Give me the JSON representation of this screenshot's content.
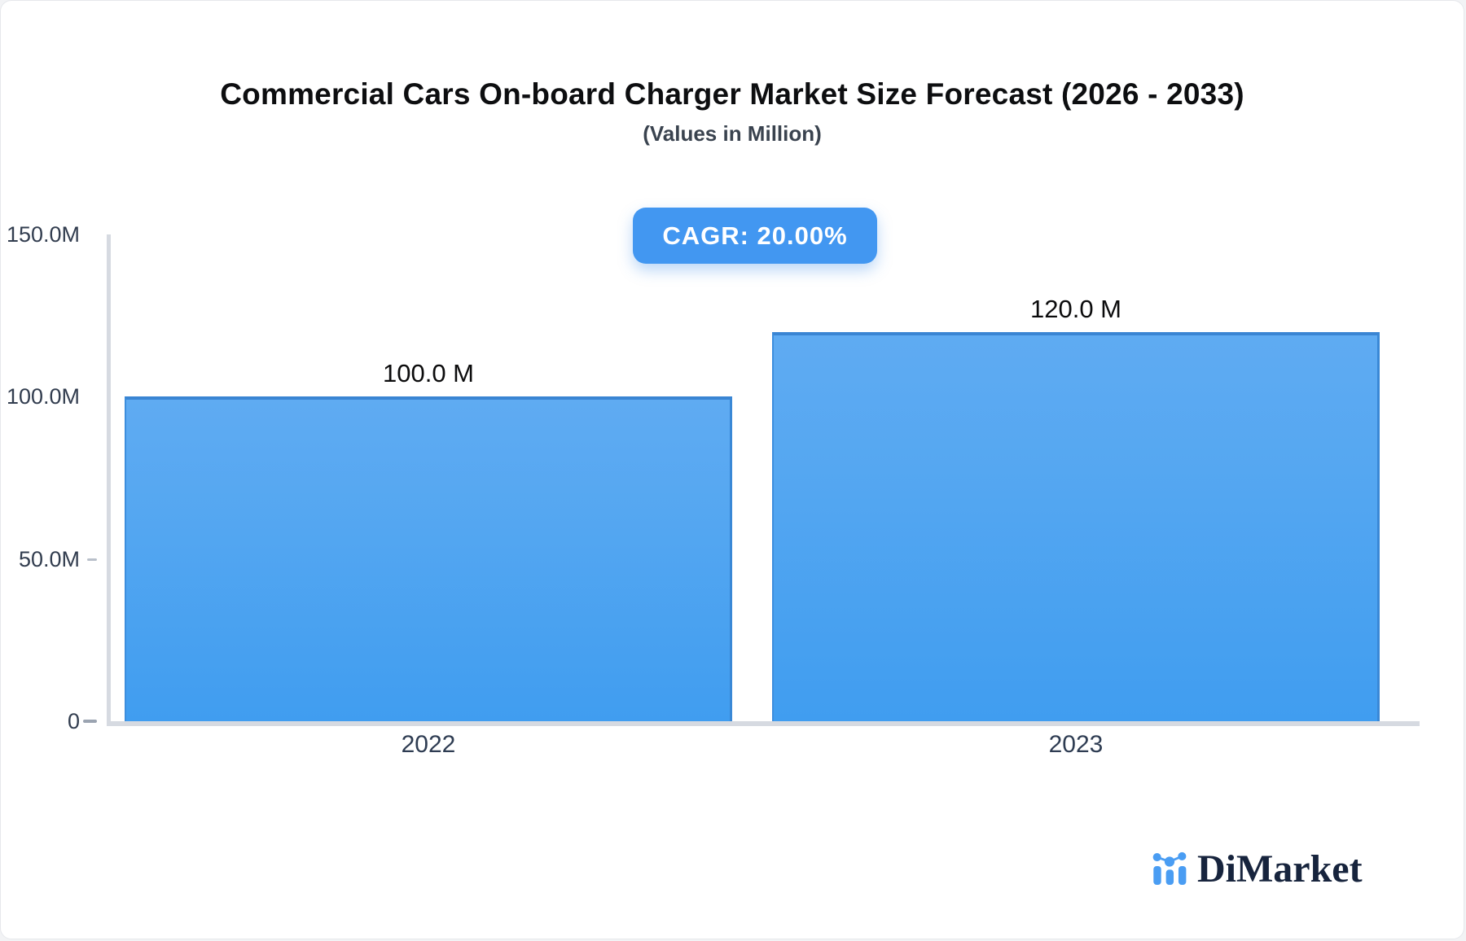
{
  "header": {
    "title": "Commercial Cars On-board Charger Market Size Forecast (2026 - 2033)",
    "subtitle": "(Values in Million)"
  },
  "badge": {
    "label": "CAGR: 20.00%"
  },
  "chart_data": {
    "type": "bar",
    "title": "Commercial Cars On-board Charger Market Size Forecast (2026 - 2033)",
    "subtitle": "(Values in Million)",
    "categories": [
      "2022",
      "2023"
    ],
    "values": [
      100.0,
      120.0
    ],
    "value_labels": [
      "100.0 M",
      "120.0 M"
    ],
    "unit": "Million",
    "xlabel": "",
    "ylabel": "",
    "ylim": [
      0,
      150
    ],
    "y_ticks": [
      {
        "value": 150,
        "label": "150.0M",
        "tick_mark": false
      },
      {
        "value": 100,
        "label": "100.0M",
        "tick_mark": false
      },
      {
        "value": 50,
        "label": "50.0M",
        "tick_mark": true
      },
      {
        "value": 0,
        "label": "0",
        "tick_mark": true
      }
    ],
    "grid": false,
    "legend": "none",
    "annotations": [
      "CAGR: 20.00%"
    ]
  },
  "branding": {
    "logo_text": "DiMarket"
  },
  "colors": {
    "badge_bg": "#4297f1",
    "badge_text": "#ffffff",
    "bar_fill_top": "#5fabf2",
    "bar_fill_bottom": "#409df0",
    "bar_border": "#3a85d3",
    "axis": "#d6dae1",
    "tick_minor": "#b9c0ca",
    "tick_zero": "#9ba4b1",
    "title_text": "#0d0e10",
    "subtitle_text": "#3a434f",
    "axis_label_text": "#323d4f",
    "logo_text": "#17243d",
    "logo_icon": "#4a9df3"
  }
}
